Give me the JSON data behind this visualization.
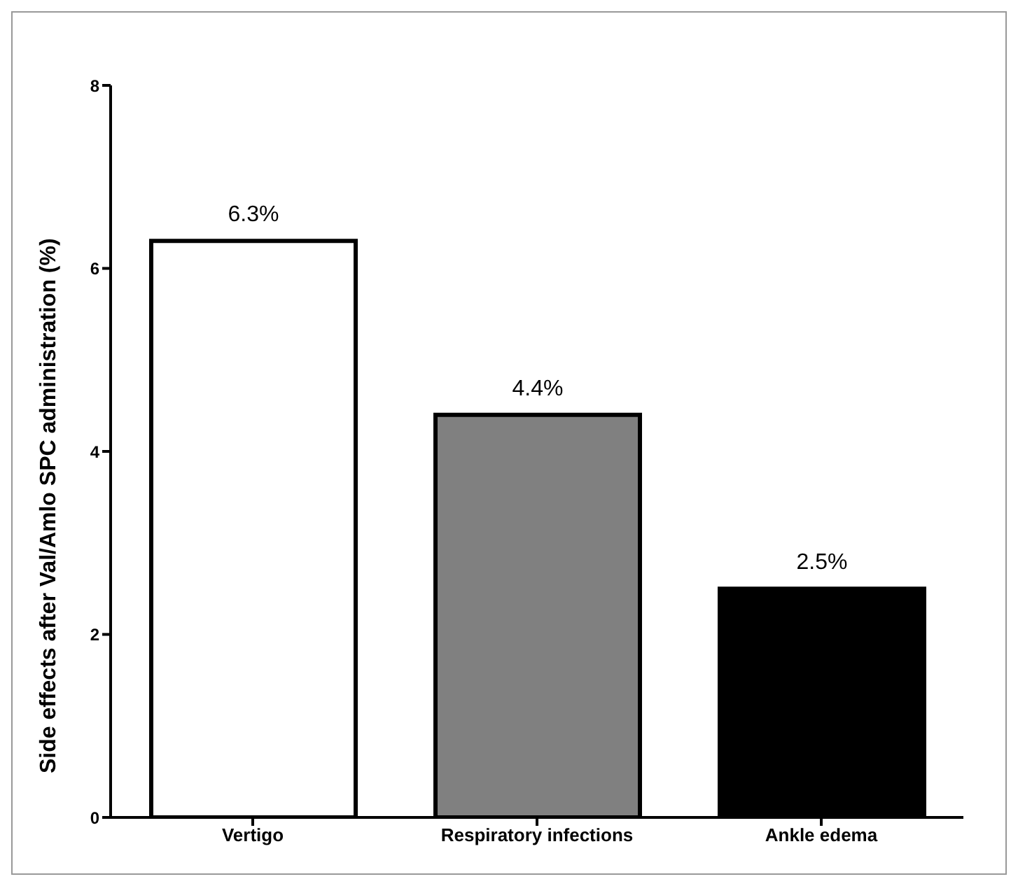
{
  "chart_data": {
    "type": "bar",
    "ylabel": "Side effects after Val/Amlo SPC administration (%)",
    "categories": [
      "Vertigo",
      "Respiratory infections",
      "Ankle edema"
    ],
    "values": [
      6.3,
      4.4,
      2.5
    ],
    "colors": [
      "#ffffff",
      "#808080",
      "#000000"
    ],
    "value_labels": [
      "6.3%",
      "4.4%",
      "2.5%"
    ],
    "ylim": [
      0,
      8
    ],
    "yticks": [
      0,
      2,
      4,
      6,
      8
    ],
    "grid": false,
    "legend": false
  }
}
